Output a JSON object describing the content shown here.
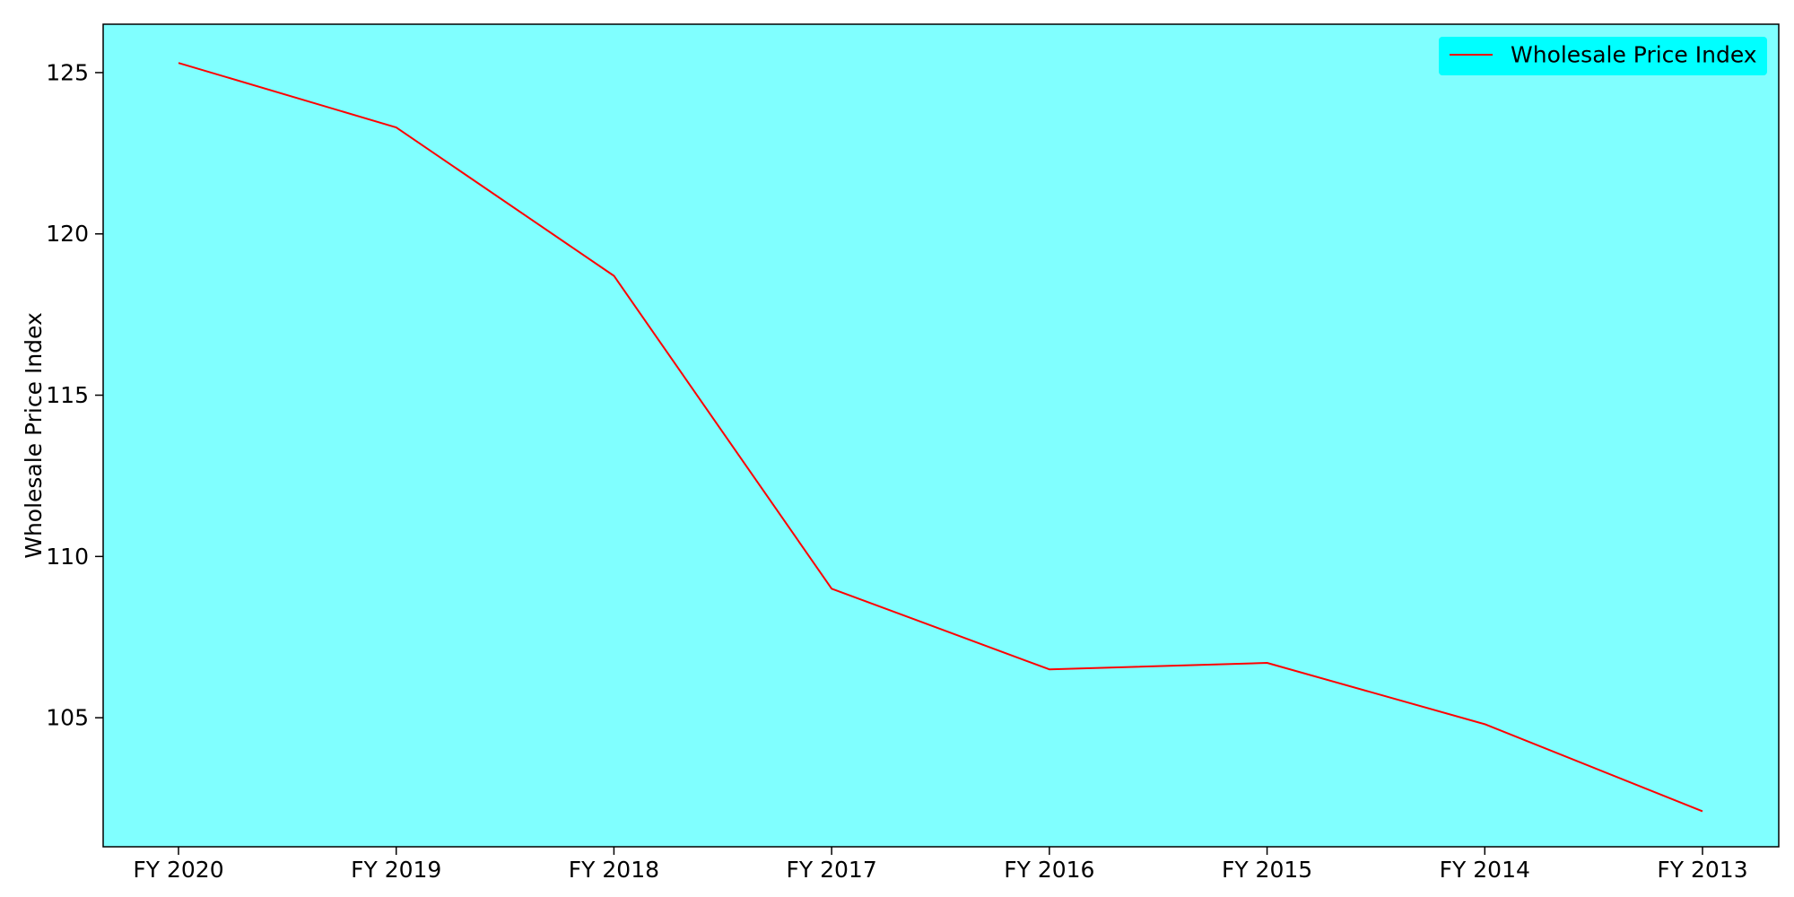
{
  "chart_data": {
    "type": "line",
    "categories": [
      "FY 2020",
      "FY 2019",
      "FY 2018",
      "FY 2017",
      "FY 2016",
      "FY 2015",
      "FY 2014",
      "FY 2013"
    ],
    "series": [
      {
        "name": "Wholesale Price Index",
        "values": [
          125.3,
          123.3,
          118.7,
          109.0,
          106.5,
          106.7,
          104.8,
          102.1
        ],
        "color": "#ff0000"
      }
    ],
    "xlabel": "",
    "ylabel": "Wholesale Price Index",
    "ylim": [
      101.0,
      126.5
    ],
    "yticks": [
      105,
      110,
      115,
      120,
      125
    ],
    "grid": false,
    "legend": "top-right",
    "plot_background": "#80ffff",
    "legend_background": "#00ffff"
  }
}
